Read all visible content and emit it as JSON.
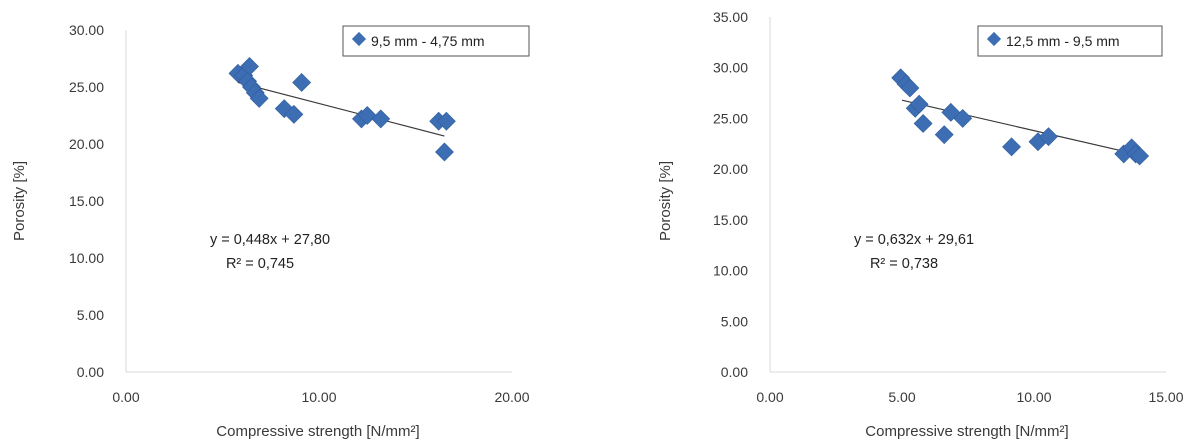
{
  "chart_data": [
    {
      "type": "scatter",
      "xlabel": "Compressive strength [N/mm²]",
      "ylabel": "Porosity [%]",
      "xlim": [
        0,
        20
      ],
      "ylim": [
        0,
        30
      ],
      "x_ticks": [
        "0.00",
        "10.00",
        "20.00"
      ],
      "y_ticks": [
        "0.00",
        "5.00",
        "10.00",
        "15.00",
        "20.00",
        "25.00",
        "30.00"
      ],
      "legend_position": "top-right",
      "series": [
        {
          "name": "9,5 mm - 4,75 mm",
          "color": "#3d6eb4",
          "points": [
            [
              5.8,
              26.2
            ],
            [
              6.1,
              26.0
            ],
            [
              6.4,
              26.8
            ],
            [
              6.3,
              25.5
            ],
            [
              6.5,
              25.0
            ],
            [
              6.7,
              24.5
            ],
            [
              6.9,
              24.0
            ],
            [
              8.2,
              23.1
            ],
            [
              8.7,
              22.6
            ],
            [
              9.1,
              25.4
            ],
            [
              12.2,
              22.2
            ],
            [
              12.5,
              22.5
            ],
            [
              13.2,
              22.2
            ],
            [
              16.2,
              22.0
            ],
            [
              16.6,
              22.0
            ],
            [
              16.5,
              19.3
            ]
          ]
        }
      ],
      "trendline": {
        "from": [
          5.8,
          25.4
        ],
        "to": [
          16.5,
          20.7
        ]
      },
      "equation": "y = 0,448x + 27,80",
      "r_squared": "R² = 0,745"
    },
    {
      "type": "scatter",
      "xlabel": "Compressive strength [N/mm²]",
      "ylabel": "Porosity [%]",
      "xlim": [
        0,
        15
      ],
      "ylim": [
        0,
        35
      ],
      "x_ticks": [
        "0.00",
        "5.00",
        "10.00",
        "15.00"
      ],
      "y_ticks": [
        "0.00",
        "5.00",
        "10.00",
        "15.00",
        "20.00",
        "25.00",
        "30.00",
        "35.00"
      ],
      "legend_position": "top-right",
      "series": [
        {
          "name": "12,5 mm - 9,5 mm",
          "color": "#3d6eb4",
          "points": [
            [
              4.95,
              29.0
            ],
            [
              5.15,
              28.4
            ],
            [
              5.3,
              28.0
            ],
            [
              5.5,
              26.0
            ],
            [
              5.65,
              26.4
            ],
            [
              5.8,
              24.5
            ],
            [
              6.6,
              23.4
            ],
            [
              6.85,
              25.6
            ],
            [
              7.3,
              25.0
            ],
            [
              9.15,
              22.2
            ],
            [
              10.15,
              22.7
            ],
            [
              10.55,
              23.2
            ],
            [
              13.4,
              21.5
            ],
            [
              13.7,
              22.1
            ],
            [
              13.85,
              21.5
            ],
            [
              14.0,
              21.3
            ]
          ]
        }
      ],
      "trendline": {
        "from": [
          5.0,
          26.8
        ],
        "to": [
          14.0,
          21.4
        ]
      },
      "equation": "y = 0,632x + 29,61",
      "r_squared": "R² = 0,738"
    }
  ]
}
